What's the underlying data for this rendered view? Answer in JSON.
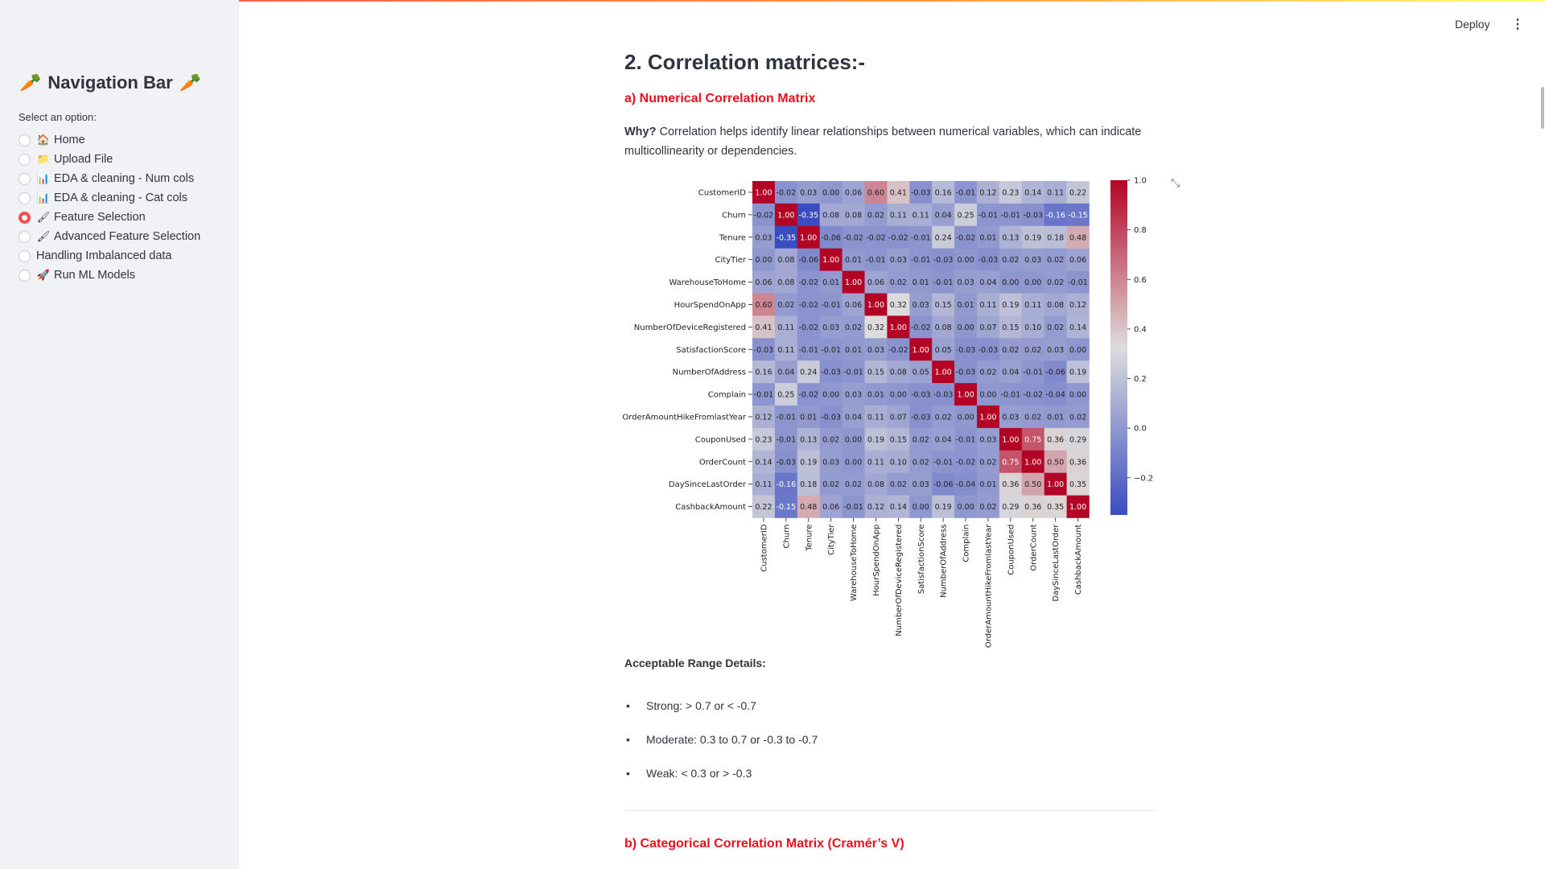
{
  "sidebar": {
    "title": "Navigation Bar",
    "title_emoji_left": "🥕",
    "title_emoji_right": "🥕",
    "select_label": "Select an option:",
    "items": [
      {
        "label": "Home",
        "icon": "🏠",
        "selected": false
      },
      {
        "label": "Upload File",
        "icon": "📁",
        "selected": false
      },
      {
        "label": "EDA & cleaning - Num cols",
        "icon": "📊",
        "selected": false
      },
      {
        "label": "EDA & cleaning - Cat cols",
        "icon": "📊",
        "selected": false
      },
      {
        "label": "Feature Selection",
        "icon": "🖌",
        "selected": true
      },
      {
        "label": "Advanced Feature Selection",
        "icon": "🖌",
        "selected": false
      },
      {
        "label": "Handling Imbalanced data",
        "icon": "",
        "selected": false
      },
      {
        "label": "Run ML Models",
        "icon": "🚀",
        "selected": false
      }
    ]
  },
  "header": {
    "deploy_label": "Deploy",
    "menu_icon": "⋮"
  },
  "main": {
    "title": "2. Correlation matrices:-",
    "section_a": "a) Numerical Correlation Matrix",
    "why_label": "Why?",
    "why_text": " Correlation helps identify linear relationships between numerical variables, which can indicate multicollinearity or dependencies.",
    "range_title": "Acceptable Range Details:",
    "ranges": [
      "Strong: > 0.7 or < -0.7",
      "Moderate: 0.3 to 0.7 or -0.3 to -0.7",
      "Weak: < 0.3 or > -0.3"
    ],
    "section_b": "b) Categorical Correlation Matrix (Cramér’s V)"
  },
  "chart_data": {
    "type": "heatmap",
    "labels": [
      "CustomerID",
      "Churn",
      "Tenure",
      "CityTier",
      "WarehouseToHome",
      "HourSpendOnApp",
      "NumberOfDeviceRegistered",
      "SatisfactionScore",
      "NumberOfAddress",
      "Complain",
      "OrderAmountHikeFromlastYear",
      "CouponUsed",
      "OrderCount",
      "DaySinceLastOrder",
      "CashbackAmount"
    ],
    "values": [
      [
        1.0,
        -0.02,
        0.03,
        0.0,
        0.06,
        0.6,
        0.41,
        -0.03,
        0.16,
        -0.01,
        0.12,
        0.23,
        0.14,
        0.11,
        0.22
      ],
      [
        -0.02,
        1.0,
        -0.35,
        0.08,
        0.08,
        0.02,
        0.11,
        0.11,
        0.04,
        0.25,
        -0.01,
        -0.01,
        -0.03,
        -0.16,
        -0.15
      ],
      [
        0.03,
        -0.35,
        1.0,
        -0.06,
        -0.02,
        -0.02,
        -0.02,
        -0.01,
        0.24,
        -0.02,
        0.01,
        0.13,
        0.19,
        0.18,
        0.48
      ],
      [
        0.0,
        0.08,
        -0.06,
        1.0,
        0.01,
        -0.01,
        0.03,
        -0.01,
        -0.03,
        0.0,
        -0.03,
        0.02,
        0.03,
        0.02,
        0.06
      ],
      [
        0.06,
        0.08,
        -0.02,
        0.01,
        1.0,
        0.06,
        0.02,
        0.01,
        -0.01,
        0.03,
        0.04,
        -0.0,
        0.0,
        0.02,
        -0.01
      ],
      [
        0.6,
        0.02,
        -0.02,
        -0.01,
        0.06,
        1.0,
        0.32,
        0.03,
        0.15,
        0.01,
        0.11,
        0.19,
        0.11,
        0.08,
        0.12
      ],
      [
        0.41,
        0.11,
        -0.02,
        0.03,
        0.02,
        0.32,
        1.0,
        -0.02,
        0.08,
        0.0,
        0.07,
        0.15,
        0.1,
        0.02,
        0.14
      ],
      [
        -0.03,
        0.11,
        -0.01,
        -0.01,
        0.01,
        0.03,
        -0.02,
        1.0,
        0.05,
        -0.03,
        -0.03,
        0.02,
        0.02,
        0.03,
        0.0
      ],
      [
        0.16,
        0.04,
        0.24,
        -0.03,
        -0.01,
        0.15,
        0.08,
        0.05,
        1.0,
        -0.03,
        0.02,
        0.04,
        -0.01,
        -0.06,
        0.19
      ],
      [
        -0.01,
        0.25,
        -0.02,
        0.0,
        0.03,
        0.01,
        0.0,
        -0.03,
        -0.03,
        1.0,
        -0.0,
        -0.01,
        -0.02,
        -0.04,
        0.0
      ],
      [
        0.12,
        -0.01,
        0.01,
        -0.03,
        0.04,
        0.11,
        0.07,
        -0.03,
        0.02,
        -0.0,
        1.0,
        0.03,
        0.02,
        0.01,
        0.02
      ],
      [
        0.23,
        -0.01,
        0.13,
        0.02,
        -0.0,
        0.19,
        0.15,
        0.02,
        0.04,
        -0.01,
        0.03,
        1.0,
        0.75,
        0.36,
        0.29
      ],
      [
        0.14,
        -0.03,
        0.19,
        0.03,
        0.0,
        0.11,
        0.1,
        0.02,
        -0.01,
        -0.02,
        0.02,
        0.75,
        1.0,
        0.5,
        0.36
      ],
      [
        0.11,
        -0.16,
        0.18,
        0.02,
        0.02,
        0.08,
        0.02,
        0.03,
        -0.06,
        -0.04,
        0.01,
        0.36,
        0.5,
        1.0,
        0.35
      ],
      [
        0.22,
        -0.15,
        0.48,
        0.06,
        -0.01,
        0.12,
        0.14,
        0.0,
        0.19,
        0.0,
        0.02,
        0.29,
        0.36,
        0.35,
        1.0
      ]
    ],
    "colorbar": {
      "min": -0.35,
      "max": 1.0,
      "ticks": [
        "1.0",
        "0.8",
        "0.6",
        "0.4",
        "0.2",
        "0.0",
        "−0.2"
      ],
      "tick_values": [
        1.0,
        0.8,
        0.6,
        0.4,
        0.2,
        0.0,
        -0.2
      ]
    },
    "colormap": "coolwarm",
    "colormap_low": "#3b4cc0",
    "colormap_mid": "#dddddd",
    "colormap_high": "#b40426"
  }
}
